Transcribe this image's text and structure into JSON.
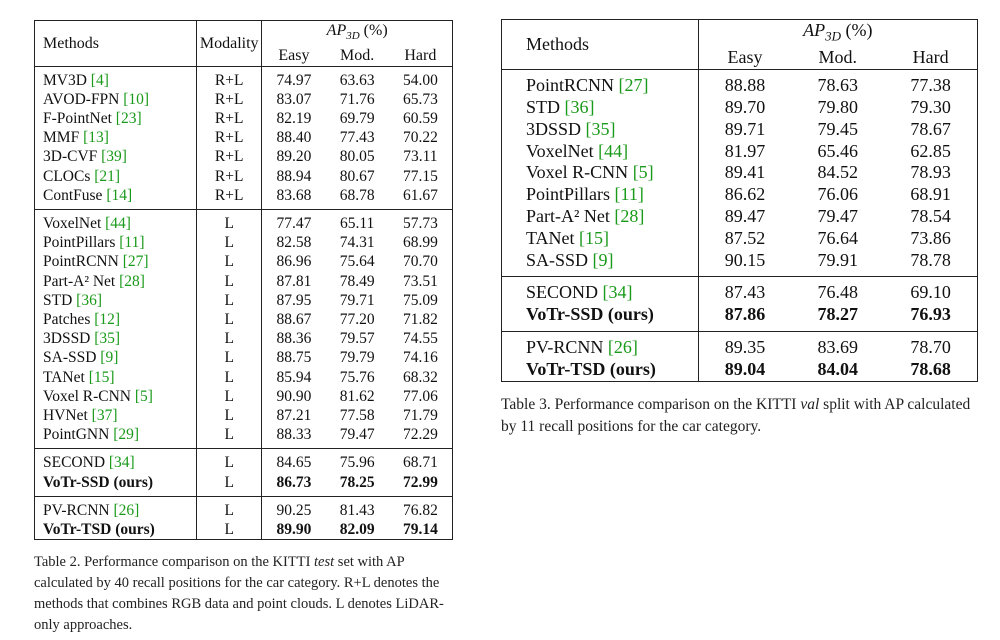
{
  "table2": {
    "header": {
      "methods": "Methods",
      "modality": "Modality",
      "ap": "AP",
      "ap_sub": "3D",
      "ap_unit": "(%)",
      "easy": "Easy",
      "mod": "Mod.",
      "hard": "Hard"
    },
    "groups": [
      [
        {
          "name": "MV3D",
          "cite": "[4]",
          "modality": "R+L",
          "easy": "74.97",
          "mod": "63.63",
          "hard": "54.00"
        },
        {
          "name": "AVOD-FPN",
          "cite": "[10]",
          "modality": "R+L",
          "easy": "83.07",
          "mod": "71.76",
          "hard": "65.73"
        },
        {
          "name": "F-PointNet",
          "cite": "[23]",
          "modality": "R+L",
          "easy": "82.19",
          "mod": "69.79",
          "hard": "60.59"
        },
        {
          "name": "MMF",
          "cite": "[13]",
          "modality": "R+L",
          "easy": "88.40",
          "mod": "77.43",
          "hard": "70.22"
        },
        {
          "name": "3D-CVF",
          "cite": "[39]",
          "modality": "R+L",
          "easy": "89.20",
          "mod": "80.05",
          "hard": "73.11"
        },
        {
          "name": "CLOCs",
          "cite": "[21]",
          "modality": "R+L",
          "easy": "88.94",
          "mod": "80.67",
          "hard": "77.15"
        },
        {
          "name": "ContFuse",
          "cite": "[14]",
          "modality": "R+L",
          "easy": "83.68",
          "mod": "68.78",
          "hard": "61.67"
        }
      ],
      [
        {
          "name": "VoxelNet",
          "cite": "[44]",
          "modality": "L",
          "easy": "77.47",
          "mod": "65.11",
          "hard": "57.73"
        },
        {
          "name": "PointPillars",
          "cite": "[11]",
          "modality": "L",
          "easy": "82.58",
          "mod": "74.31",
          "hard": "68.99"
        },
        {
          "name": "PointRCNN",
          "cite": "[27]",
          "modality": "L",
          "easy": "86.96",
          "mod": "75.64",
          "hard": "70.70"
        },
        {
          "name": "Part-A² Net",
          "cite": "[28]",
          "modality": "L",
          "easy": "87.81",
          "mod": "78.49",
          "hard": "73.51"
        },
        {
          "name": "STD",
          "cite": "[36]",
          "modality": "L",
          "easy": "87.95",
          "mod": "79.71",
          "hard": "75.09"
        },
        {
          "name": "Patches",
          "cite": "[12]",
          "modality": "L",
          "easy": "88.67",
          "mod": "77.20",
          "hard": "71.82"
        },
        {
          "name": "3DSSD",
          "cite": "[35]",
          "modality": "L",
          "easy": "88.36",
          "mod": "79.57",
          "hard": "74.55"
        },
        {
          "name": "SA-SSD",
          "cite": "[9]",
          "modality": "L",
          "easy": "88.75",
          "mod": "79.79",
          "hard": "74.16"
        },
        {
          "name": "TANet",
          "cite": "[15]",
          "modality": "L",
          "easy": "85.94",
          "mod": "75.76",
          "hard": "68.32"
        },
        {
          "name": "Voxel R-CNN",
          "cite": "[5]",
          "modality": "L",
          "easy": "90.90",
          "mod": "81.62",
          "hard": "77.06"
        },
        {
          "name": "HVNet",
          "cite": "[37]",
          "modality": "L",
          "easy": "87.21",
          "mod": "77.58",
          "hard": "71.79"
        },
        {
          "name": "PointGNN",
          "cite": "[29]",
          "modality": "L",
          "easy": "88.33",
          "mod": "79.47",
          "hard": "72.29"
        }
      ],
      [
        {
          "name": "SECOND",
          "cite": "[34]",
          "modality": "L",
          "easy": "84.65",
          "mod": "75.96",
          "hard": "68.71"
        },
        {
          "name": "VoTr-SSD (ours)",
          "cite": "",
          "modality": "L",
          "easy": "86.73",
          "mod": "78.25",
          "hard": "72.99",
          "bold": true
        }
      ],
      [
        {
          "name": "PV-RCNN",
          "cite": "[26]",
          "modality": "L",
          "easy": "90.25",
          "mod": "81.43",
          "hard": "76.82"
        },
        {
          "name": "VoTr-TSD (ours)",
          "cite": "",
          "modality": "L",
          "easy": "89.90",
          "mod": "82.09",
          "hard": "79.14",
          "bold": true
        }
      ]
    ],
    "caption": {
      "part1": "Table 2. Performance comparison on the KITTI ",
      "italic": "test",
      "part2": " set with AP calculated by 40 recall positions for the car category. R+L denotes the methods that combines RGB data and point clouds. L denotes LiDAR-only approaches."
    }
  },
  "table3": {
    "header": {
      "methods": "Methods",
      "ap": "AP",
      "ap_sub": "3D",
      "ap_unit": "(%)",
      "easy": "Easy",
      "mod": "Mod.",
      "hard": "Hard"
    },
    "groups": [
      [
        {
          "name": "PointRCNN",
          "cite": "[27]",
          "easy": "88.88",
          "mod": "78.63",
          "hard": "77.38"
        },
        {
          "name": "STD",
          "cite": "[36]",
          "easy": "89.70",
          "mod": "79.80",
          "hard": "79.30"
        },
        {
          "name": "3DSSD",
          "cite": "[35]",
          "easy": "89.71",
          "mod": "79.45",
          "hard": "78.67"
        },
        {
          "name": "VoxelNet",
          "cite": "[44]",
          "easy": "81.97",
          "mod": "65.46",
          "hard": "62.85"
        },
        {
          "name": "Voxel R-CNN",
          "cite": "[5]",
          "easy": "89.41",
          "mod": "84.52",
          "hard": "78.93"
        },
        {
          "name": "PointPillars",
          "cite": "[11]",
          "easy": "86.62",
          "mod": "76.06",
          "hard": "68.91"
        },
        {
          "name": "Part-A² Net",
          "cite": "[28]",
          "easy": "89.47",
          "mod": "79.47",
          "hard": "78.54"
        },
        {
          "name": "TANet",
          "cite": "[15]",
          "easy": "87.52",
          "mod": "76.64",
          "hard": "73.86"
        },
        {
          "name": "SA-SSD",
          "cite": "[9]",
          "easy": "90.15",
          "mod": "79.91",
          "hard": "78.78"
        }
      ],
      [
        {
          "name": "SECOND",
          "cite": "[34]",
          "easy": "87.43",
          "mod": "76.48",
          "hard": "69.10"
        },
        {
          "name": "VoTr-SSD (ours)",
          "cite": "",
          "easy": "87.86",
          "mod": "78.27",
          "hard": "76.93",
          "bold": true
        }
      ],
      [
        {
          "name": "PV-RCNN",
          "cite": "[26]",
          "easy": "89.35",
          "mod": "83.69",
          "hard": "78.70"
        },
        {
          "name": "VoTr-TSD (ours)",
          "cite": "",
          "easy": "89.04",
          "mod": "84.04",
          "hard": "78.68",
          "bold": true
        }
      ]
    ],
    "caption": {
      "part1": "Table 3. Performance comparison on the KITTI ",
      "italic": "val",
      "part2": " split with AP calculated by 11 recall positions for the car category."
    }
  }
}
